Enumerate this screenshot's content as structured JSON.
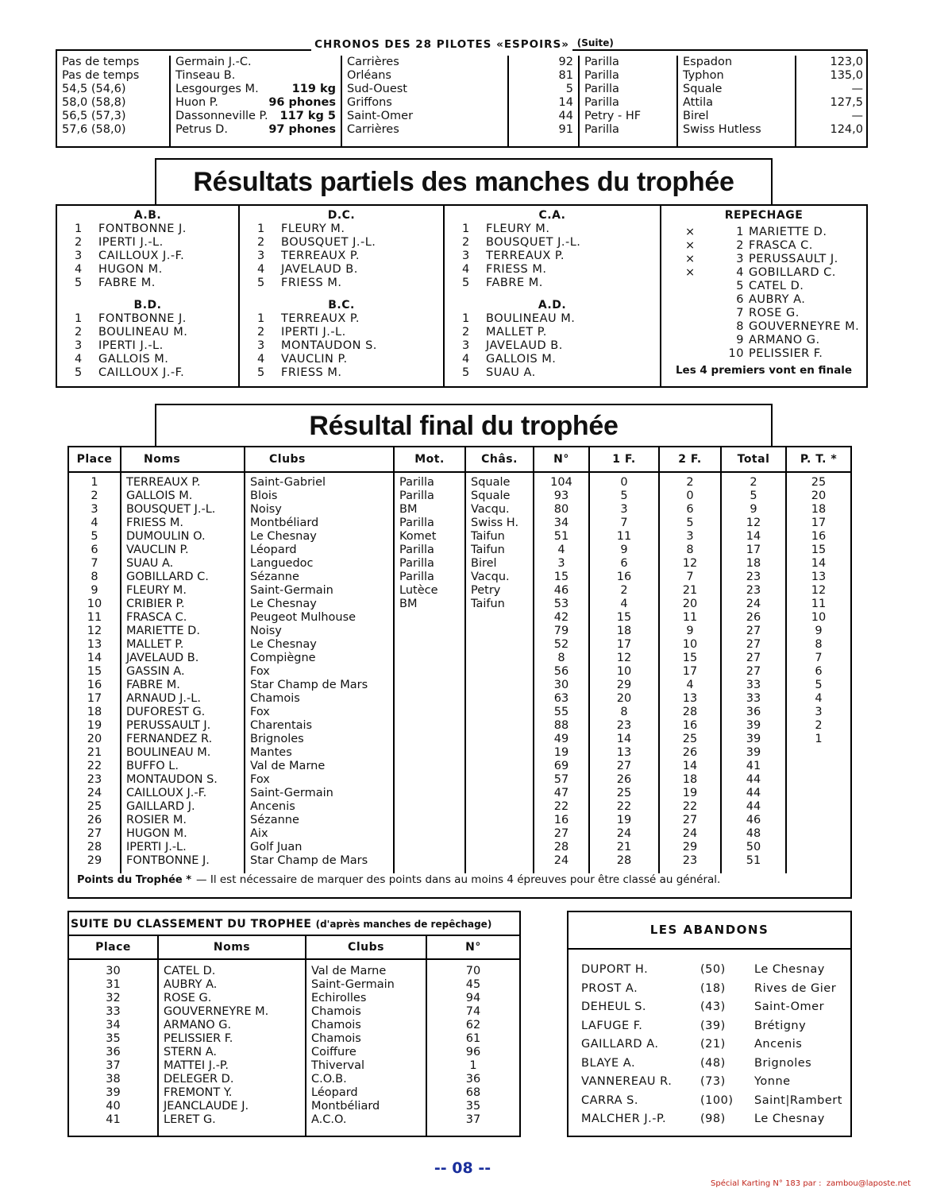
{
  "chronos": {
    "title": "CHRONOS DES 28 PILOTES «ESPOIRS»",
    "suffix": "(Suite)",
    "rows": [
      {
        "time": "Pas de temps",
        "name": "Germain J.-C.",
        "club": "Carrières",
        "num": "92",
        "motor": "Parilla",
        "chassis": "Espadon",
        "speed": "123,0"
      },
      {
        "time": "Pas de temps",
        "name": "Tinseau B.",
        "club": "Orléans",
        "num": "81",
        "motor": "Parilla",
        "chassis": "Typhon",
        "speed": "135,0"
      },
      {
        "time": "54,5 (54,6)",
        "name": "Lesgourges M.",
        "note": "119 kg",
        "club": "Sud-Ouest",
        "num": "5",
        "motor": "Parilla",
        "chassis": "Squale",
        "speed": "—"
      },
      {
        "time": "58,0 (58,8)",
        "name": "Huon P.",
        "note": "96 phones",
        "club": "Griffons",
        "num": "14",
        "motor": "Parilla",
        "chassis": "Attila",
        "speed": "127,5"
      },
      {
        "time": "56,5 (57,3)",
        "name": "Dassonneville P.",
        "note": "117 kg 5",
        "club": "Saint-Omer",
        "num": "44",
        "motor": "Petry - HF",
        "chassis": "Birel",
        "speed": "—"
      },
      {
        "time": "57,6 (58,0)",
        "name": "Petrus D.",
        "note": "97 phones",
        "club": "Carrières",
        "num": "91",
        "motor": "Parilla",
        "chassis": "Swiss Hutless",
        "speed": "124,0"
      }
    ]
  },
  "partial": {
    "title": "Résultats partiels des manches du trophée",
    "columns": [
      [
        {
          "heading": "A.B.",
          "entries": [
            [
              "1",
              "FONTBONNE J."
            ],
            [
              "2",
              "IPERTI J.-L."
            ],
            [
              "3",
              "CAILLOUX J.-F."
            ],
            [
              "4",
              "HUGON M."
            ],
            [
              "5",
              "FABRE M."
            ]
          ]
        },
        {
          "heading": "B.D.",
          "entries": [
            [
              "1",
              "FONTBONNE J."
            ],
            [
              "2",
              "BOULINEAU M."
            ],
            [
              "3",
              "IPERTI J.-L."
            ],
            [
              "4",
              "GALLOIS M."
            ],
            [
              "5",
              "CAILLOUX J.-F."
            ]
          ]
        }
      ],
      [
        {
          "heading": "D.C.",
          "entries": [
            [
              "1",
              "FLEURY M."
            ],
            [
              "2",
              "BOUSQUET J.-L."
            ],
            [
              "3",
              "TERREAUX P."
            ],
            [
              "4",
              "JAVELAUD B."
            ],
            [
              "5",
              "FRIESS M."
            ]
          ]
        },
        {
          "heading": "B.C.",
          "entries": [
            [
              "1",
              "TERREAUX P."
            ],
            [
              "2",
              "IPERTI J.-L."
            ],
            [
              "3",
              "MONTAUDON S."
            ],
            [
              "4",
              "VAUCLIN P."
            ],
            [
              "5",
              "FRIESS M."
            ]
          ]
        }
      ],
      [
        {
          "heading": "C.A.",
          "entries": [
            [
              "1",
              "FLEURY M."
            ],
            [
              "2",
              "BOUSQUET J.-L."
            ],
            [
              "3",
              "TERREAUX P."
            ],
            [
              "4",
              "FRIESS M."
            ],
            [
              "5",
              "FABRE M."
            ]
          ]
        },
        {
          "heading": "A.D.",
          "entries": [
            [
              "1",
              "BOULINEAU M."
            ],
            [
              "2",
              "MALLET P."
            ],
            [
              "3",
              "JAVELAUD B."
            ],
            [
              "4",
              "GALLOIS M."
            ],
            [
              "5",
              "SUAU A."
            ]
          ]
        }
      ]
    ],
    "repechage": {
      "heading": "REPECHAGE",
      "entries": [
        {
          "marker": "×",
          "rank": "1",
          "name": "MARIETTE D."
        },
        {
          "marker": "×",
          "rank": "2",
          "name": "FRASCA C."
        },
        {
          "marker": "×",
          "rank": "3",
          "name": "PERUSSAULT J."
        },
        {
          "marker": "×",
          "rank": "4",
          "name": "GOBILLARD C."
        },
        {
          "rank": "5",
          "name": "CATEL D."
        },
        {
          "rank": "6",
          "name": "AUBRY A."
        },
        {
          "rank": "7",
          "name": "ROSE G."
        },
        {
          "rank": "8",
          "name": "GOUVERNEYRE M."
        },
        {
          "rank": "9",
          "name": "ARMANO G."
        },
        {
          "rank": "10",
          "name": "PELISSIER F."
        }
      ],
      "note": "Les 4 premiers vont en finale"
    }
  },
  "final": {
    "title": "Résultal final du trophée",
    "headers": [
      "Place",
      "Noms",
      "Clubs",
      "Mot.",
      "Châs.",
      "N°",
      "1 F.",
      "2 F.",
      "Total",
      "P. T. *"
    ],
    "rows": [
      {
        "place": "1",
        "name": "TERREAUX P.",
        "club": "Saint-Gabriel",
        "motor": "Parilla",
        "chassis": "Squale",
        "num": "104",
        "f1": "0",
        "f2": "2",
        "total": "2",
        "pt": "25"
      },
      {
        "place": "2",
        "name": "GALLOIS M.",
        "club": "Blois",
        "motor": "Parilla",
        "chassis": "Squale",
        "num": "93",
        "f1": "5",
        "f2": "0",
        "total": "5",
        "pt": "20"
      },
      {
        "place": "3",
        "name": "BOUSQUET J.-L.",
        "club": "Noisy",
        "motor": "BM",
        "chassis": "Vacqu.",
        "num": "80",
        "f1": "3",
        "f2": "6",
        "total": "9",
        "pt": "18"
      },
      {
        "place": "4",
        "name": "FRIESS M.",
        "club": "Montbéliard",
        "motor": "Parilla",
        "chassis": "Swiss H.",
        "num": "34",
        "f1": "7",
        "f2": "5",
        "total": "12",
        "pt": "17"
      },
      {
        "place": "5",
        "name": "DUMOULIN O.",
        "club": "Le Chesnay",
        "motor": "Komet",
        "chassis": "Taifun",
        "num": "51",
        "f1": "11",
        "f2": "3",
        "total": "14",
        "pt": "16"
      },
      {
        "place": "6",
        "name": "VAUCLIN P.",
        "club": "Léopard",
        "motor": "Parilla",
        "chassis": "Taifun",
        "num": "4",
        "f1": "9",
        "f2": "8",
        "total": "17",
        "pt": "15"
      },
      {
        "place": "7",
        "name": "SUAU A.",
        "club": "Languedoc",
        "motor": "Parilla",
        "chassis": "Birel",
        "num": "3",
        "f1": "6",
        "f2": "12",
        "total": "18",
        "pt": "14"
      },
      {
        "place": "8",
        "name": "GOBILLARD C.",
        "club": "Sézanne",
        "motor": "Parilla",
        "chassis": "Vacqu.",
        "num": "15",
        "f1": "16",
        "f2": "7",
        "total": "23",
        "pt": "13"
      },
      {
        "place": "9",
        "name": "FLEURY M.",
        "club": "Saint-Germain",
        "motor": "Lutèce",
        "chassis": "Petry",
        "num": "46",
        "f1": "2",
        "f2": "21",
        "total": "23",
        "pt": "12"
      },
      {
        "place": "10",
        "name": "CRIBIER P.",
        "club": "Le Chesnay",
        "motor": "BM",
        "chassis": "Taifun",
        "num": "53",
        "f1": "4",
        "f2": "20",
        "total": "24",
        "pt": "11"
      },
      {
        "place": "11",
        "name": "FRASCA C.",
        "club": "Peugeot Mulhouse",
        "num": "42",
        "f1": "15",
        "f2": "11",
        "total": "26",
        "pt": "10"
      },
      {
        "place": "12",
        "name": "MARIETTE D.",
        "club": "Noisy",
        "num": "79",
        "f1": "18",
        "f2": "9",
        "total": "27",
        "pt": "9"
      },
      {
        "place": "13",
        "name": "MALLET P.",
        "club": "Le Chesnay",
        "num": "52",
        "f1": "17",
        "f2": "10",
        "total": "27",
        "pt": "8"
      },
      {
        "place": "14",
        "name": "JAVELAUD B.",
        "club": "Compiègne",
        "num": "8",
        "f1": "12",
        "f2": "15",
        "total": "27",
        "pt": "7"
      },
      {
        "place": "15",
        "name": "GASSIN A.",
        "club": "Fox",
        "num": "56",
        "f1": "10",
        "f2": "17",
        "total": "27",
        "pt": "6"
      },
      {
        "place": "16",
        "name": "FABRE M.",
        "club": "Star Champ de Mars",
        "num": "30",
        "f1": "29",
        "f2": "4",
        "total": "33",
        "pt": "5"
      },
      {
        "place": "17",
        "name": "ARNAUD J.-L.",
        "club": "Chamois",
        "num": "63",
        "f1": "20",
        "f2": "13",
        "total": "33",
        "pt": "4"
      },
      {
        "place": "18",
        "name": "DUFOREST G.",
        "club": "Fox",
        "num": "55",
        "f1": "8",
        "f2": "28",
        "total": "36",
        "pt": "3"
      },
      {
        "place": "19",
        "name": "PERUSSAULT J.",
        "club": "Charentais",
        "num": "88",
        "f1": "23",
        "f2": "16",
        "total": "39",
        "pt": "2"
      },
      {
        "place": "20",
        "name": "FERNANDEZ R.",
        "club": "Brignoles",
        "num": "49",
        "f1": "14",
        "f2": "25",
        "total": "39",
        "pt": "1"
      },
      {
        "place": "21",
        "name": "BOULINEAU M.",
        "club": "Mantes",
        "num": "19",
        "f1": "13",
        "f2": "26",
        "total": "39"
      },
      {
        "place": "22",
        "name": "BUFFO L.",
        "club": "Val de Marne",
        "num": "69",
        "f1": "27",
        "f2": "14",
        "total": "41"
      },
      {
        "place": "23",
        "name": "MONTAUDON S.",
        "club": "Fox",
        "num": "57",
        "f1": "26",
        "f2": "18",
        "total": "44"
      },
      {
        "place": "24",
        "name": "CAILLOUX J.-F.",
        "club": "Saint-Germain",
        "num": "47",
        "f1": "25",
        "f2": "19",
        "total": "44"
      },
      {
        "place": "25",
        "name": "GAILLARD J.",
        "club": "Ancenis",
        "num": "22",
        "f1": "22",
        "f2": "22",
        "total": "44"
      },
      {
        "place": "26",
        "name": "ROSIER M.",
        "club": "Sézanne",
        "num": "16",
        "f1": "19",
        "f2": "27",
        "total": "46"
      },
      {
        "place": "27",
        "name": "HUGON M.",
        "club": "Aix",
        "num": "27",
        "f1": "24",
        "f2": "24",
        "total": "48"
      },
      {
        "place": "28",
        "name": "IPERTI J.-L.",
        "club": "Golf Juan",
        "num": "28",
        "f1": "21",
        "f2": "29",
        "total": "50"
      },
      {
        "place": "29",
        "name": "FONTBONNE J.",
        "club": "Star Champ de Mars",
        "num": "24",
        "f1": "28",
        "f2": "23",
        "total": "51"
      }
    ],
    "note_label": "Points du Trophée *",
    "note": "— Il est nécessaire de marquer des points dans au moins 4 épreuves pour être classé au général."
  },
  "suite": {
    "title": "SUITE DU CLASSEMENT DU TROPHEE",
    "subtitle": "(d'après manches de repêchage)",
    "headers": [
      "Place",
      "Noms",
      "Clubs",
      "N°"
    ],
    "rows": [
      {
        "place": "30",
        "name": "CATEL D.",
        "club": "Val de Marne",
        "num": "70"
      },
      {
        "place": "31",
        "name": "AUBRY A.",
        "club": "Saint-Germain",
        "num": "45"
      },
      {
        "place": "32",
        "name": "ROSE G.",
        "club": "Echirolles",
        "num": "94"
      },
      {
        "place": "33",
        "name": "GOUVERNEYRE M.",
        "club": "Chamois",
        "num": "74"
      },
      {
        "place": "34",
        "name": "ARMANO G.",
        "club": "Chamois",
        "num": "62"
      },
      {
        "place": "35",
        "name": "PELISSIER F.",
        "club": "Chamois",
        "num": "61"
      },
      {
        "place": "36",
        "name": "STERN A.",
        "club": "Coiffure",
        "num": "96"
      },
      {
        "place": "37",
        "name": "MATTEI J.-P.",
        "club": "Thiverval",
        "num": "1"
      },
      {
        "place": "38",
        "name": "DELEGER D.",
        "club": "C.O.B.",
        "num": "36"
      },
      {
        "place": "39",
        "name": "FREMONT Y.",
        "club": "Léopard",
        "num": "68"
      },
      {
        "place": "40",
        "name": "JEANCLAUDE J.",
        "club": "Montbéliard",
        "num": "35"
      },
      {
        "place": "41",
        "name": "LERET G.",
        "club": "A.C.O.",
        "num": "37"
      }
    ]
  },
  "abandons": {
    "title": "LES ABANDONS",
    "rows": [
      [
        "DUPORT H.",
        "(50)",
        "Le Chesnay"
      ],
      [
        "PROST A.",
        "(18)",
        "Rives de Gier"
      ],
      [
        "DEHEUL S.",
        "(43)",
        "Saint-Omer"
      ],
      [
        "LAFUGE F.",
        "(39)",
        "Brétigny"
      ],
      [
        "GAILLARD A.",
        "(21)",
        "Ancenis"
      ],
      [
        "BLAYE A.",
        "(48)",
        "Brignoles"
      ],
      [
        "VANNEREAU R.",
        "(73)",
        "Yonne"
      ],
      [
        "CARRA S.",
        "(100)",
        "Saint|Rambert"
      ],
      [
        "MALCHER J.-P.",
        "(98)",
        "Le Chesnay"
      ]
    ]
  },
  "footer": {
    "page": "-- 08 --",
    "credit": "Spécial Karting N° 183 par :  zambou@laposte.net"
  }
}
